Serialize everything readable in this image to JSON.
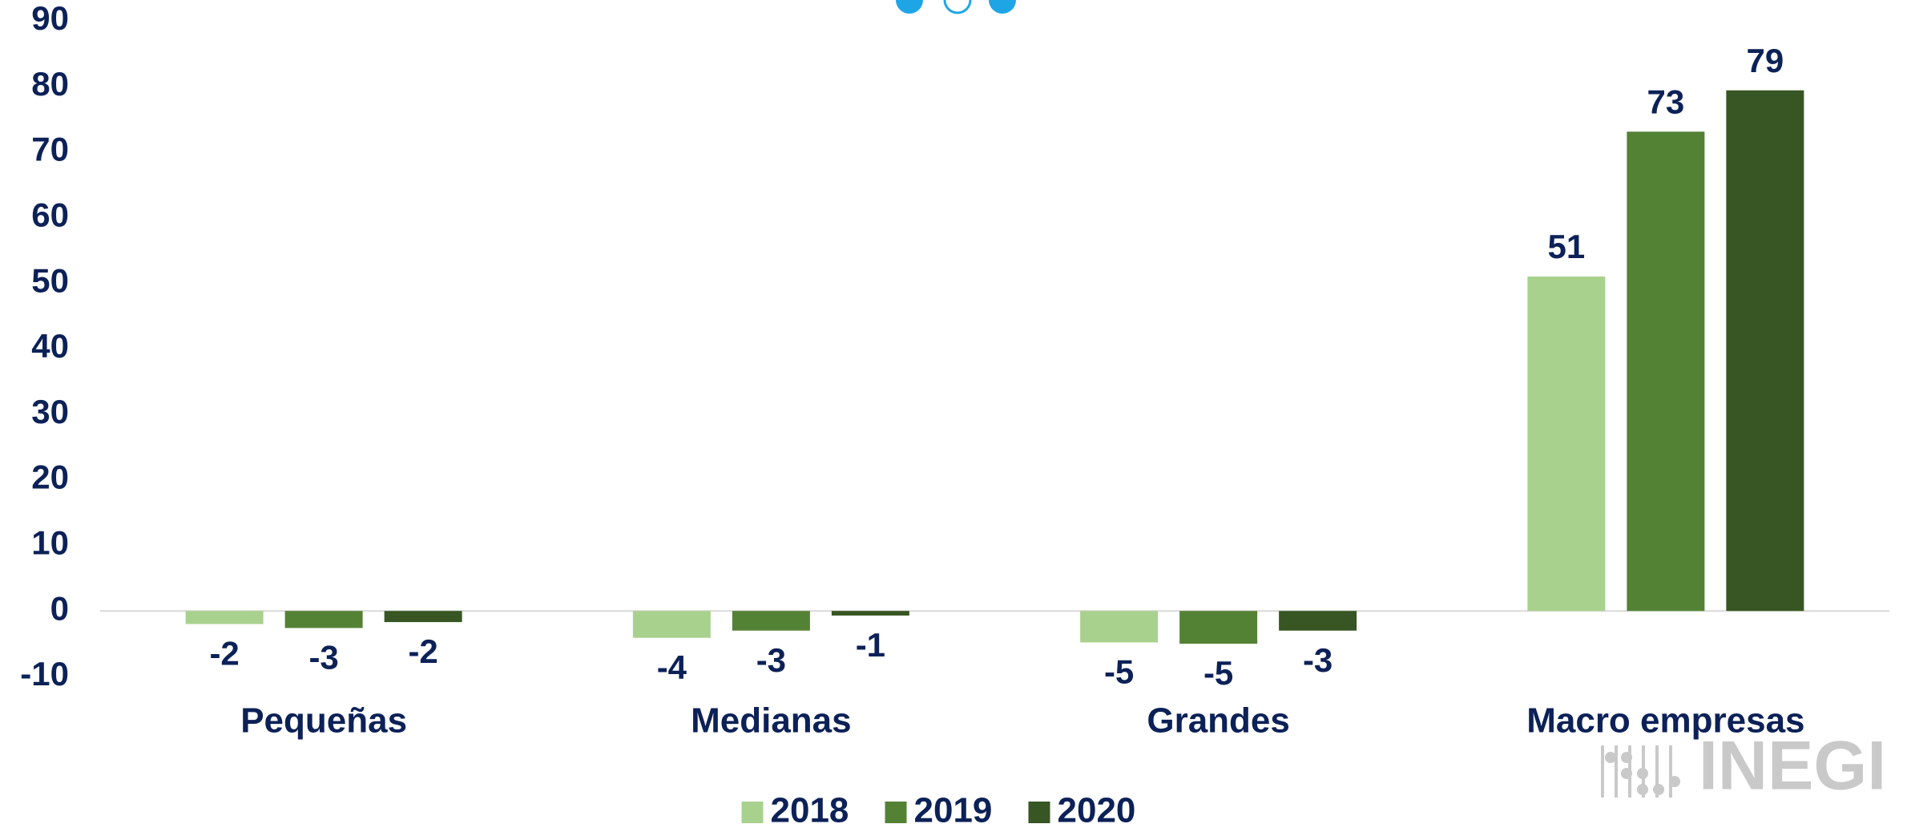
{
  "chart_data": {
    "type": "bar",
    "categories": [
      "Pequeñas",
      "Medianas",
      "Grandes",
      "Macro empresas"
    ],
    "series": [
      {
        "name": "2018",
        "color": "#a9d18e",
        "values": [
          -2.0,
          -4.1,
          -4.8,
          51
        ],
        "value_labels": [
          "-2",
          "-4",
          "-5",
          "51"
        ]
      },
      {
        "name": "2019",
        "color": "#548235",
        "values": [
          -2.6,
          -3.0,
          -5.0,
          73.1
        ],
        "value_labels": [
          "-3",
          "-3",
          "-5",
          "73"
        ]
      },
      {
        "name": "2020",
        "color": "#375623",
        "values": [
          -1.7,
          -0.7,
          -3.0,
          79.4
        ],
        "value_labels": [
          "-2",
          "-1",
          "-3",
          "79"
        ]
      }
    ],
    "ylim": [
      -10,
      90
    ],
    "yticks": [
      -10,
      0,
      10,
      20,
      30,
      40,
      50,
      60,
      70,
      80,
      90
    ],
    "grid": false,
    "legend": "bottom"
  },
  "logo_text": "INEGI"
}
